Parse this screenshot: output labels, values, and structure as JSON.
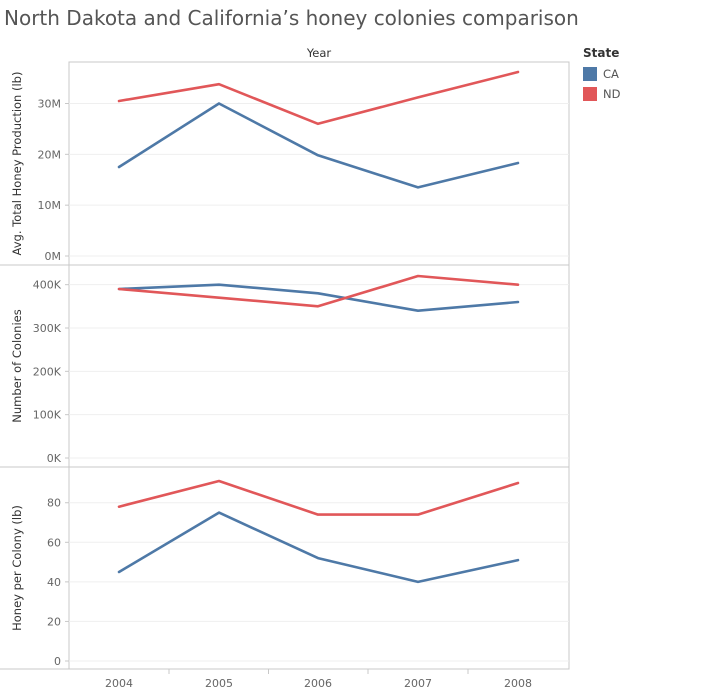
{
  "chart_data": {
    "type": "line",
    "title": "North Dakota and California’s honey colonies comparison",
    "column_header": "Year",
    "x": [
      "2004",
      "2005",
      "2006",
      "2007",
      "2008"
    ],
    "legend": {
      "title": "State",
      "placement": "top-right"
    },
    "series_names": [
      "CA",
      "ND"
    ],
    "colors": {
      "CA": "#4e79a7",
      "ND": "#e15759"
    },
    "panels": [
      {
        "ylabel": "Avg. Total Honey Production (lb)",
        "ylim": [
          0,
          36000000
        ],
        "ticks": [
          0,
          10000000,
          20000000,
          30000000
        ],
        "tick_labels": [
          "0M",
          "10M",
          "20M",
          "30M"
        ],
        "series": [
          {
            "name": "CA",
            "values": [
              17500000,
              30000000,
              19800000,
              13500000,
              18300000
            ]
          },
          {
            "name": "ND",
            "values": [
              30500000,
              33800000,
              26000000,
              31200000,
              36200000
            ]
          }
        ]
      },
      {
        "ylabel": "Number of Colonies",
        "ylim": [
          0,
          420000
        ],
        "ticks": [
          0,
          100000,
          200000,
          300000,
          400000
        ],
        "tick_labels": [
          "0K",
          "100K",
          "200K",
          "300K",
          "400K"
        ],
        "series": [
          {
            "name": "CA",
            "values": [
              390000,
              400000,
              380000,
              340000,
              360000
            ]
          },
          {
            "name": "ND",
            "values": [
              390000,
              370000,
              350000,
              420000,
              400000
            ]
          }
        ]
      },
      {
        "ylabel": "Honey per Colony (lb)",
        "ylim": [
          0,
          92
        ],
        "ticks": [
          0,
          20,
          40,
          60,
          80
        ],
        "tick_labels": [
          "0",
          "20",
          "40",
          "60",
          "80"
        ],
        "series": [
          {
            "name": "CA",
            "values": [
              45,
              75,
              52,
              40,
              51
            ]
          },
          {
            "name": "ND",
            "values": [
              78,
              91,
              74,
              74,
              90
            ]
          }
        ]
      }
    ],
    "grid": true
  }
}
